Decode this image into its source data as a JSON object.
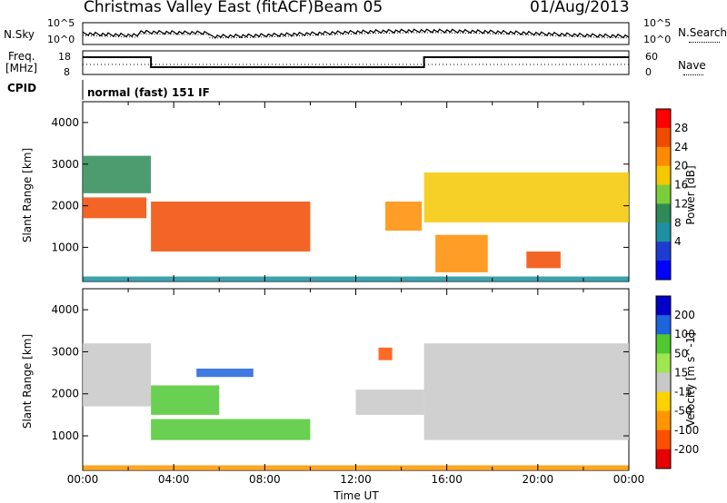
{
  "header": {
    "station": "Christmas Valley East (fitACF)",
    "beam": "Beam 05",
    "date": "01/Aug/2013"
  },
  "noise_panel": {
    "left_label": "N.Sky",
    "left_ticks": [
      "10^5",
      "10^0"
    ],
    "right_label": "N.Search",
    "right_ticks": [
      "10^5",
      "10^0"
    ]
  },
  "freq_panel": {
    "left_label_1": "Freq.",
    "left_label_2": "[MHz]",
    "left_ticks": [
      "18",
      "8"
    ],
    "right_label": "Nave",
    "right_ticks": [
      "60",
      "0"
    ]
  },
  "cpid": {
    "label": "CPID",
    "program": "normal (fast) 151 IF"
  },
  "chart_data": [
    {
      "type": "heatmap",
      "name": "Power",
      "ylabel": "Slant Range [km]",
      "xlabel": "",
      "ylim": [
        180,
        4500
      ],
      "xlim_hours": [
        0,
        24
      ],
      "y_ticks": [
        "1000",
        "2000",
        "3000",
        "4000"
      ],
      "colorbar_label": "Power [dB]",
      "colorbar_ticks": [
        "28",
        "24",
        "20",
        "16",
        "12",
        "8",
        "4"
      ],
      "colorbar_colors": [
        "#ff0000",
        "#f04a00",
        "#ff8c00",
        "#f5c800",
        "#7ccd3c",
        "#2e8b57",
        "#1e90a0",
        "#1e3cd2",
        "#0000ff"
      ],
      "echo_regions": [
        {
          "t": [
            0.0,
            2.8
          ],
          "r": [
            1700,
            2200
          ],
          "level": 24
        },
        {
          "t": [
            0.0,
            3.0
          ],
          "r": [
            2300,
            3200
          ],
          "level": 12
        },
        {
          "t": [
            3.0,
            10.0
          ],
          "r": [
            900,
            2100
          ],
          "level": 26
        },
        {
          "t": [
            13.3,
            14.9
          ],
          "r": [
            1400,
            2100
          ],
          "level": 22
        },
        {
          "t": [
            15.0,
            24.0
          ],
          "r": [
            1600,
            2800
          ],
          "level": 16
        },
        {
          "t": [
            15.5,
            17.8
          ],
          "r": [
            400,
            1300
          ],
          "level": 22
        },
        {
          "t": [
            19.5,
            21.0
          ],
          "r": [
            500,
            900
          ],
          "level": 24
        },
        {
          "t": [
            0.0,
            24.0
          ],
          "r": [
            180,
            300
          ],
          "level": 8
        }
      ]
    },
    {
      "type": "heatmap",
      "name": "Velocity",
      "ylabel": "Slant Range [km]",
      "xlabel": "Time UT",
      "ylim": [
        180,
        4500
      ],
      "xlim_hours": [
        0,
        24
      ],
      "y_ticks": [
        "1000",
        "2000",
        "3000",
        "4000"
      ],
      "x_ticks": [
        "00:00",
        "04:00",
        "08:00",
        "12:00",
        "16:00",
        "20:00",
        "00:00"
      ],
      "colorbar_label": "Velocity [m s^-1]",
      "colorbar_ticks": [
        "200",
        "100",
        "50",
        "15",
        "-15",
        "-50",
        "-100",
        "-200"
      ],
      "colorbar_colors": [
        "#0000c8",
        "#1e64dc",
        "#50c832",
        "#a0e650",
        "#c8c8c8",
        "#ffd200",
        "#ff9600",
        "#ff5000",
        "#e60000"
      ],
      "echo_regions": [
        {
          "t": [
            0.0,
            3.0
          ],
          "r": [
            1700,
            3200
          ],
          "v": 0
        },
        {
          "t": [
            3.0,
            6.0
          ],
          "r": [
            1500,
            2200
          ],
          "v": 60
        },
        {
          "t": [
            5.0,
            7.5
          ],
          "r": [
            2400,
            2600
          ],
          "v": 150
        },
        {
          "t": [
            3.0,
            10.0
          ],
          "r": [
            900,
            1400
          ],
          "v": 50
        },
        {
          "t": [
            12.0,
            15.0
          ],
          "r": [
            1500,
            2100
          ],
          "v": 0
        },
        {
          "t": [
            13.0,
            13.6
          ],
          "r": [
            2800,
            3100
          ],
          "v": -200
        },
        {
          "t": [
            15.0,
            24.0
          ],
          "r": [
            900,
            3200
          ],
          "v": 0
        },
        {
          "t": [
            0.0,
            24.0
          ],
          "r": [
            180,
            300
          ],
          "v": -80
        }
      ]
    }
  ]
}
